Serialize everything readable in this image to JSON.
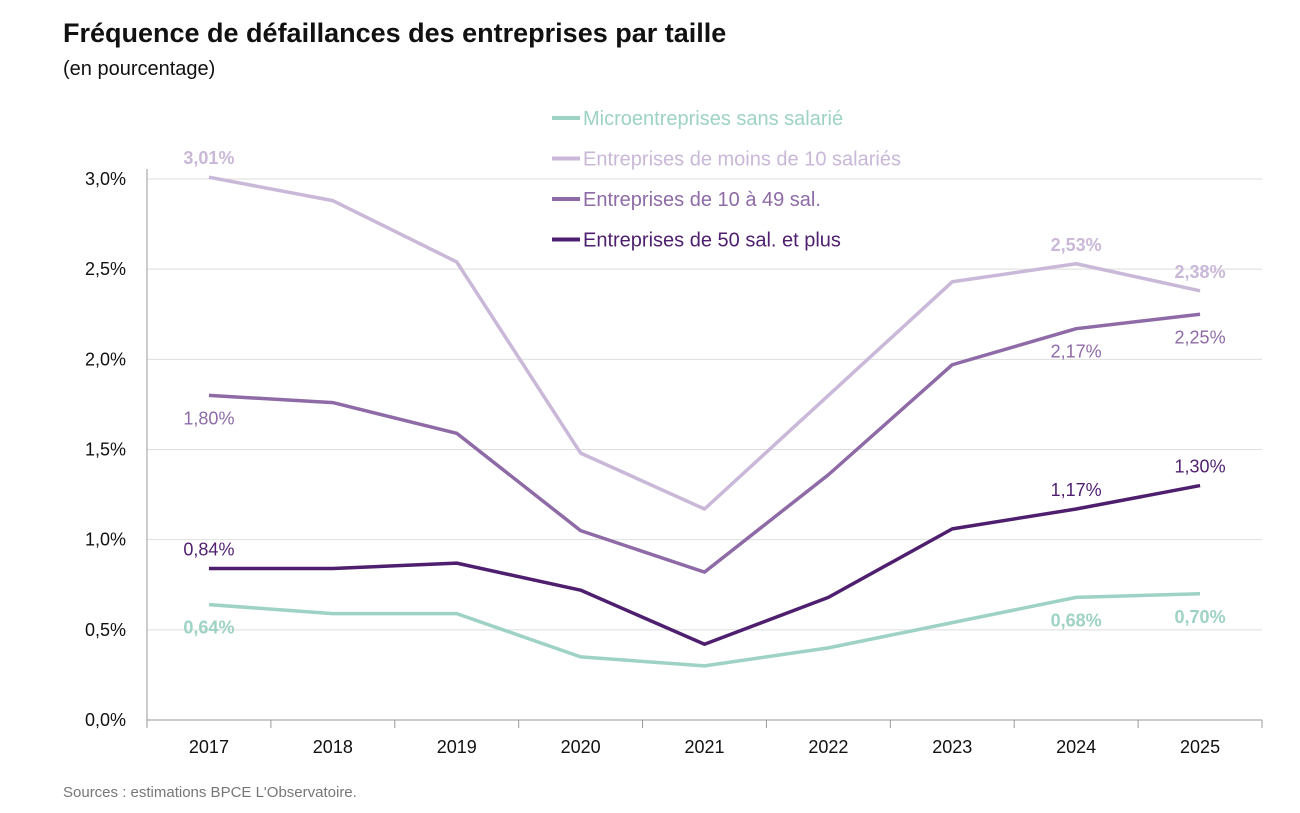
{
  "chart_data": {
    "type": "line",
    "title": "Fréquence de défaillances des entreprises par taille",
    "subtitle": "(en pourcentage)",
    "source": "Sources : estimations BPCE L'Observatoire.",
    "categories": [
      "2017",
      "2018",
      "2019",
      "2020",
      "2021",
      "2022",
      "2023",
      "2024",
      "2025"
    ],
    "ylim": [
      0,
      3.0
    ],
    "yticks": [
      "0,0%",
      "0,5%",
      "1,0%",
      "1,5%",
      "2,0%",
      "2,5%",
      "3,0%"
    ],
    "grid": true,
    "legend_position": "top-center",
    "series": [
      {
        "name": "Microentreprises sans salarié",
        "color": "#9dd2c5",
        "values": [
          0.64,
          0.59,
          0.59,
          0.35,
          0.3,
          0.4,
          0.54,
          0.68,
          0.7
        ],
        "labels": {
          "0": "0,64%",
          "7": "0,68%",
          "8": "0,70%"
        },
        "label_pos": "below",
        "label_bold": true
      },
      {
        "name": "Entreprises de moins de 10 salariés",
        "color": "#c9b8d8",
        "values": [
          3.01,
          2.88,
          2.54,
          1.48,
          1.17,
          1.8,
          2.43,
          2.53,
          2.38
        ],
        "labels": {
          "0": "3,01%",
          "7": "2,53%",
          "8": "2,38%"
        },
        "label_pos": "above",
        "label_bold": true
      },
      {
        "name": "Entreprises de 10 à 49 sal.",
        "color": "#8e6ba7",
        "values": [
          1.8,
          1.76,
          1.59,
          1.05,
          0.82,
          1.36,
          1.97,
          2.17,
          2.25
        ],
        "labels": {
          "0": "1,80%",
          "7": "2,17%",
          "8": "2,25%"
        },
        "label_pos": "below",
        "label_bold": false
      },
      {
        "name": "Entreprises de 50 sal. et plus",
        "color": "#4f1f6f",
        "values": [
          0.84,
          0.84,
          0.87,
          0.72,
          0.42,
          0.68,
          1.06,
          1.17,
          1.3
        ],
        "labels": {
          "0": "0,84%",
          "7": "1,17%",
          "8": "1,30%"
        },
        "label_pos": "above",
        "label_bold": false
      }
    ]
  }
}
